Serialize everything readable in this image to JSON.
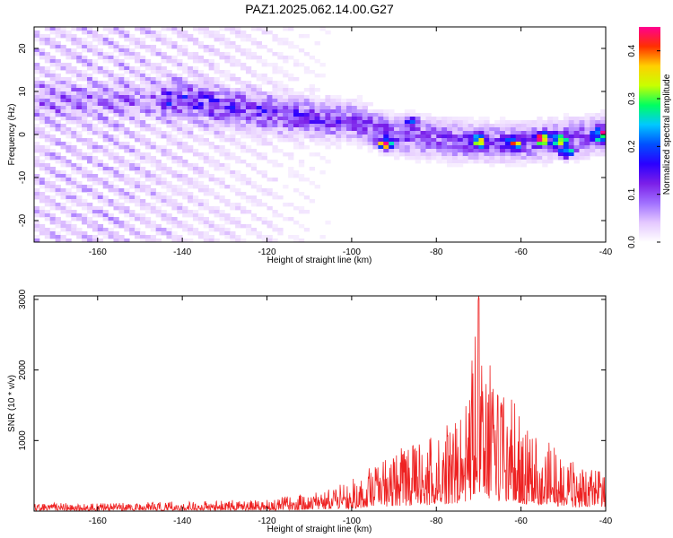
{
  "title": "PAZ1.2025.062.14.00.G27",
  "chart_data": [
    {
      "type": "heatmap",
      "xlabel": "Height of straight line (km)",
      "ylabel": "Frequency (Hz)",
      "xlim": [
        -175,
        -40
      ],
      "ylim": [
        -25,
        25
      ],
      "xticks": [
        -160,
        -140,
        -120,
        -100,
        -80,
        -60,
        -40
      ],
      "yticks": [
        -20,
        -10,
        0,
        10,
        20
      ],
      "colorbar": {
        "label": "Normalized spectral amplitude",
        "range": [
          0,
          0.45
        ],
        "ticks": [
          0.0,
          0.1,
          0.2,
          0.3,
          0.4
        ],
        "colormap": [
          "#ffffff",
          "#e4c8ff",
          "#a070ff",
          "#7b1fe8",
          "#2a00ff",
          "#0050ff",
          "#00c8ff",
          "#00ff60",
          "#c8ff00",
          "#ffd000",
          "#ff3000",
          "#ff0090"
        ]
      },
      "ridge": {
        "x": [
          -140,
          -120,
          -100,
          -90,
          -80,
          -70,
          -60,
          -50,
          -40
        ],
        "y": [
          8,
          5,
          3,
          0,
          -1,
          -2,
          -2,
          -1,
          0
        ]
      },
      "peaks": [
        {
          "x": -92,
          "y": -2,
          "amplitude": 0.42
        },
        {
          "x": -86,
          "y": 3,
          "amplitude": 0.18
        },
        {
          "x": -70,
          "y": -1.5,
          "amplitude": 0.43
        },
        {
          "x": -62,
          "y": -2,
          "amplitude": 0.44
        },
        {
          "x": -55,
          "y": -1,
          "amplitude": 0.36
        },
        {
          "x": -51,
          "y": -1.5,
          "amplitude": 0.42
        },
        {
          "x": -49,
          "y": -4,
          "amplitude": 0.35
        },
        {
          "x": -41,
          "y": 0,
          "amplitude": 0.44
        }
      ]
    },
    {
      "type": "line",
      "xlabel": "Height of straight line (km)",
      "ylabel": "SNR (10 * v/v)",
      "xlim": [
        -175,
        -40
      ],
      "ylim": [
        0,
        3050
      ],
      "xticks": [
        -160,
        -140,
        -120,
        -100,
        -80,
        -60,
        -40
      ],
      "yticks": [
        1000,
        2000,
        3000
      ],
      "series": [
        {
          "color": "#ee2222",
          "envelope_x": [
            -175,
            -160,
            -140,
            -120,
            -110,
            -105,
            -100,
            -95,
            -90,
            -85,
            -80,
            -75,
            -72,
            -70,
            -68,
            -65,
            -62,
            -60,
            -55,
            -50,
            -45,
            -40
          ],
          "envelope_y": [
            120,
            110,
            140,
            170,
            260,
            320,
            450,
            650,
            900,
            950,
            1100,
            1400,
            1900,
            3050,
            2200,
            1700,
            1650,
            1300,
            1050,
            800,
            600,
            550
          ]
        }
      ]
    }
  ]
}
